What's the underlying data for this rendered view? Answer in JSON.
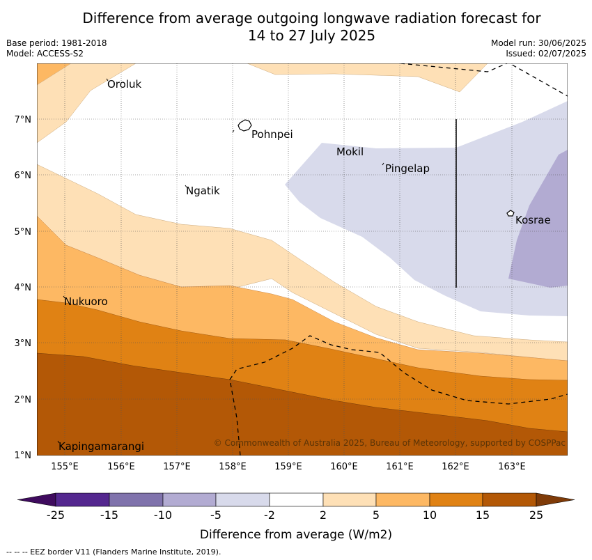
{
  "header": {
    "title_line1": "Difference from average outgoing longwave radiation forecast for",
    "title_line2": "14 to 27 July 2025",
    "base_period": "Base period: 1981-2018",
    "model": "Model: ACCESS-S2",
    "model_run": "Model run: 30/06/2025",
    "issued": "Issued: 02/07/2025"
  },
  "map": {
    "lon_labels": [
      "155°E",
      "156°E",
      "157°E",
      "158°E",
      "159°E",
      "160°E",
      "161°E",
      "162°E",
      "163°E"
    ],
    "lat_labels": [
      "7°N",
      "6°N",
      "5°N",
      "4°N",
      "3°N",
      "2°N",
      "1°N"
    ],
    "places": [
      "Oroluk",
      "Pohnpei",
      "Mokil",
      "Pingelap",
      "Ngatik",
      "Kosrae",
      "Nukuoro",
      "Kapingamarangi"
    ],
    "copyright": "© Commonwealth of Australia 2025, Bureau of Meteorology, supported by COSPPac"
  },
  "colorbar": {
    "ticks": [
      "-25",
      "-15",
      "-10",
      "-5",
      "-2",
      "2",
      "5",
      "10",
      "15",
      "25"
    ],
    "colors": [
      "#3f0b5e",
      "#54278f",
      "#8073ac",
      "#b2abd2",
      "#d8daeb",
      "#ffffff",
      "#fee0b6",
      "#fdb863",
      "#e08214",
      "#b35806",
      "#7f3b08"
    ],
    "label": "Difference from average (W/m2)"
  },
  "footer": {
    "eez_note": "--  --  -- EEZ border V11 (Flanders Marine Institute, 2019)."
  }
}
